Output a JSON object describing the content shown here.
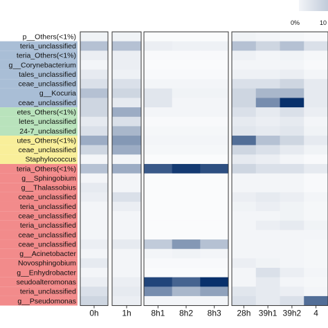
{
  "chart_data": {
    "type": "heatmap",
    "colormap": [
      "#ffffff",
      "#08306b"
    ],
    "legend": {
      "placement": "top-right",
      "tick_labels": [
        "0%",
        "10"
      ]
    },
    "groups": [
      {
        "columns": [
          "0h"
        ]
      },
      {
        "columns": [
          "1h"
        ]
      },
      {
        "columns": [
          "8h1",
          "8h2",
          "8h3"
        ]
      },
      {
        "columns": [
          "28h",
          "39h1",
          "39h2",
          "4"
        ]
      }
    ],
    "rows": [
      {
        "label": "p__Others(<1%)",
        "color": "#ffffff"
      },
      {
        "label": "teria_unclassified",
        "color": "#a9bed6"
      },
      {
        "label": "teria_Others(<1%)",
        "color": "#a9bed6"
      },
      {
        "label": "g__Corynebacterium",
        "color": "#a9bed6"
      },
      {
        "label": "tales_unclassified",
        "color": "#a9bed6"
      },
      {
        "label": "ceae_unclassified",
        "color": "#a9bed6"
      },
      {
        "label": "g__Kocuria",
        "color": "#a9bed6"
      },
      {
        "label": "ceae_unclassified",
        "color": "#a9bed6"
      },
      {
        "label": "etes_Others(<1%)",
        "color": "#b9e3bc"
      },
      {
        "label": "letes_unclassified",
        "color": "#b9e3bc"
      },
      {
        "label": "24-7_unclassified",
        "color": "#b9e3bc"
      },
      {
        "label": "utes_Others(<1%)",
        "color": "#f9ef9a"
      },
      {
        "label": "ceae_unclassified",
        "color": "#f9ef9a"
      },
      {
        "label": "Staphylococcus",
        "color": "#f9ef9a"
      },
      {
        "label": "teria_Others(<1%)",
        "color": "#f28b8b"
      },
      {
        "label": "g__Sphingobium",
        "color": "#f28b8b"
      },
      {
        "label": "g__Thalassobius",
        "color": "#f28b8b"
      },
      {
        "label": "ceae_unclassified",
        "color": "#f28b8b"
      },
      {
        "label": "teria_unclassified",
        "color": "#f28b8b"
      },
      {
        "label": "ceae_unclassified",
        "color": "#f28b8b"
      },
      {
        "label": "teria_unclassified",
        "color": "#f28b8b"
      },
      {
        "label": "ceae_unclassified",
        "color": "#f28b8b"
      },
      {
        "label": "ceae_unclassified",
        "color": "#f28b8b"
      },
      {
        "label": "g__Acinetobacter",
        "color": "#f28b8b"
      },
      {
        "label": "Novosphingobium",
        "color": "#f28b8b"
      },
      {
        "label": "g__Enhydrobacter",
        "color": "#f28b8b"
      },
      {
        "label": "seudoalteromonas",
        "color": "#f28b8b"
      },
      {
        "label": "teria_unclassified",
        "color": "#f28b8b"
      },
      {
        "label": "g__Pseudomonas",
        "color": "#f28b8b"
      }
    ],
    "values": [
      [
        0.06,
        0.06,
        0.02,
        0.02,
        0.02,
        0.06,
        0.05,
        0.04,
        0.03
      ],
      [
        0.3,
        0.3,
        0.08,
        0.07,
        0.07,
        0.3,
        0.2,
        0.3,
        0.15
      ],
      [
        0.08,
        0.08,
        0.03,
        0.03,
        0.03,
        0.07,
        0.05,
        0.06,
        0.04
      ],
      [
        0.05,
        0.08,
        0.02,
        0.02,
        0.02,
        0.05,
        0.05,
        0.05,
        0.03
      ],
      [
        0.1,
        0.07,
        0.03,
        0.03,
        0.03,
        0.07,
        0.07,
        0.08,
        0.05
      ],
      [
        0.15,
        0.15,
        0.05,
        0.05,
        0.05,
        0.15,
        0.15,
        0.2,
        0.1
      ],
      [
        0.3,
        0.2,
        0.12,
        0.06,
        0.06,
        0.2,
        0.35,
        0.35,
        0.1
      ],
      [
        0.2,
        0.1,
        0.12,
        0.05,
        0.05,
        0.2,
        0.55,
        1.0,
        0.1
      ],
      [
        0.2,
        0.4,
        0.05,
        0.05,
        0.05,
        0.15,
        0.1,
        0.15,
        0.08
      ],
      [
        0.1,
        0.15,
        0.03,
        0.03,
        0.03,
        0.1,
        0.08,
        0.1,
        0.05
      ],
      [
        0.15,
        0.35,
        0.04,
        0.04,
        0.04,
        0.12,
        0.1,
        0.12,
        0.06
      ],
      [
        0.4,
        0.5,
        0.05,
        0.05,
        0.05,
        0.7,
        0.3,
        0.2,
        0.1
      ],
      [
        0.2,
        0.4,
        0.04,
        0.04,
        0.04,
        0.2,
        0.15,
        0.1,
        0.06
      ],
      [
        0.05,
        0.05,
        0.02,
        0.02,
        0.02,
        0.1,
        0.08,
        0.05,
        0.03
      ],
      [
        0.3,
        0.4,
        0.8,
        0.95,
        0.85,
        0.2,
        0.15,
        0.15,
        0.1
      ],
      [
        0.05,
        0.05,
        0.02,
        0.02,
        0.02,
        0.05,
        0.05,
        0.05,
        0.03
      ],
      [
        0.1,
        0.05,
        0.02,
        0.02,
        0.02,
        0.05,
        0.05,
        0.05,
        0.03
      ],
      [
        0.08,
        0.15,
        0.02,
        0.02,
        0.02,
        0.08,
        0.1,
        0.08,
        0.05
      ],
      [
        0.05,
        0.08,
        0.02,
        0.02,
        0.02,
        0.06,
        0.08,
        0.06,
        0.04
      ],
      [
        0.05,
        0.05,
        0.02,
        0.02,
        0.02,
        0.05,
        0.05,
        0.06,
        0.04
      ],
      [
        0.05,
        0.05,
        0.02,
        0.02,
        0.02,
        0.05,
        0.08,
        0.1,
        0.06
      ],
      [
        0.05,
        0.05,
        0.02,
        0.02,
        0.02,
        0.05,
        0.05,
        0.05,
        0.05
      ],
      [
        0.08,
        0.1,
        0.25,
        0.5,
        0.3,
        0.05,
        0.05,
        0.05,
        0.04
      ],
      [
        0.05,
        0.05,
        0.05,
        0.06,
        0.05,
        0.05,
        0.05,
        0.05,
        0.04
      ],
      [
        0.1,
        0.05,
        0.03,
        0.03,
        0.03,
        0.08,
        0.06,
        0.05,
        0.04
      ],
      [
        0.05,
        0.05,
        0.02,
        0.02,
        0.02,
        0.05,
        0.15,
        0.08,
        0.05
      ],
      [
        0.08,
        0.08,
        0.9,
        0.75,
        1.0,
        0.05,
        0.1,
        0.05,
        0.04
      ],
      [
        0.15,
        0.1,
        0.55,
        0.35,
        0.45,
        0.12,
        0.1,
        0.08,
        0.05
      ],
      [
        0.2,
        0.08,
        0.05,
        0.05,
        0.05,
        0.15,
        0.1,
        0.15,
        0.7
      ]
    ]
  }
}
